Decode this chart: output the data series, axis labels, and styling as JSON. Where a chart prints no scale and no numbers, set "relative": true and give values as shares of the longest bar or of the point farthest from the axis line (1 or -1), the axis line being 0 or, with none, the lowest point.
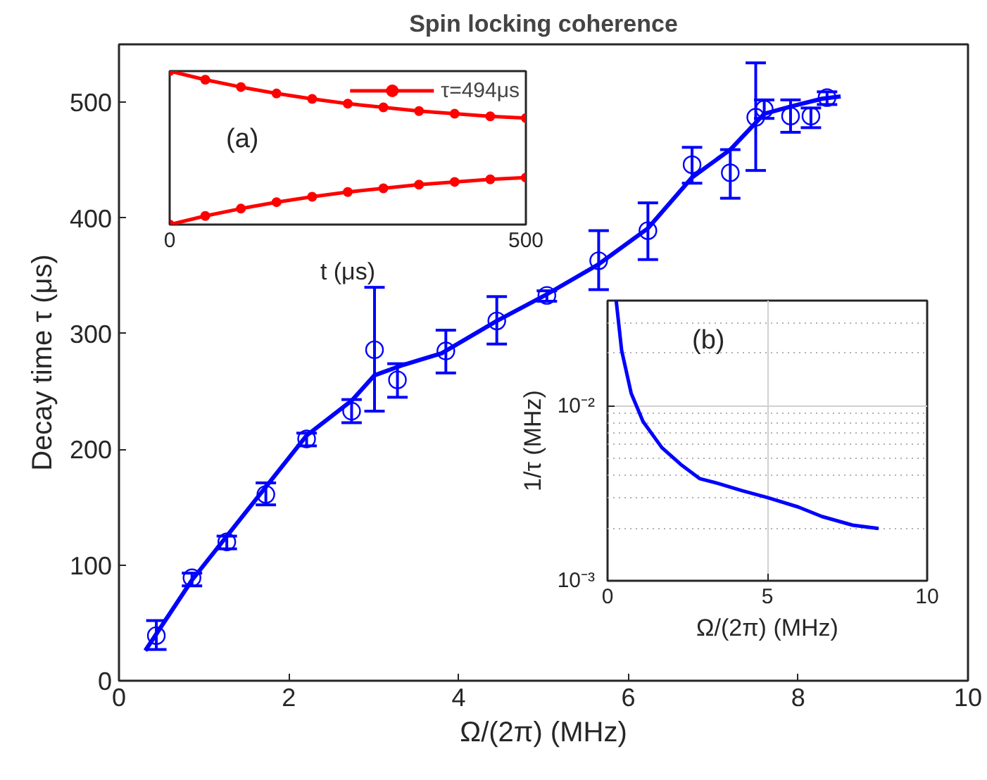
{
  "chart_data": [
    {
      "type": "scatter",
      "title": "Spin locking coherence",
      "xlabel": "Ω/(2π) (MHz)",
      "ylabel": "Decay time τ (μs)",
      "xlim": [
        0,
        10
      ],
      "ylim": [
        0,
        550
      ],
      "xticks": [
        0,
        2,
        4,
        6,
        8,
        10
      ],
      "yticks": [
        0,
        100,
        200,
        300,
        400,
        500
      ],
      "grid": false,
      "series": [
        {
          "marker": "circle",
          "color": "#0000ff",
          "x": [
            0.44,
            0.86,
            1.27,
            1.73,
            2.21,
            2.74,
            3.01,
            3.28,
            3.85,
            4.45,
            5.04,
            5.65,
            6.23,
            6.75,
            7.2,
            7.5,
            7.6,
            7.91,
            8.15,
            8.34
          ],
          "values": [
            39,
            89,
            120,
            161,
            209,
            233,
            286,
            260,
            285,
            311,
            333,
            363,
            389,
            446,
            439,
            487,
            494,
            488,
            488,
            504
          ],
          "errors": [
            [
              27,
              52
            ],
            [
              82,
              93
            ],
            [
              114,
              125
            ],
            [
              152,
              171
            ],
            [
              203,
              214
            ],
            [
              223,
              243
            ],
            [
              233,
              340
            ],
            [
              245,
              274
            ],
            [
              266,
              303
            ],
            [
              291,
              332
            ],
            [
              328,
              337
            ],
            [
              338,
              389
            ],
            [
              364,
              413
            ],
            [
              430,
              461
            ],
            [
              417,
              459
            ],
            [
              441,
              534
            ],
            [
              486,
              502
            ],
            [
              474,
              502
            ],
            [
              478,
              495
            ],
            [
              498,
              509
            ]
          ]
        },
        {
          "type": "line",
          "marker": "none",
          "line_style": "solid",
          "color": "#0000ff",
          "x": [
            0.31,
            0.86,
            2.21,
            2.74,
            3.01,
            3.35,
            3.8,
            4.45,
            5.04,
            5.65,
            6.23,
            6.75,
            7.2,
            7.6,
            7.95,
            8.28,
            8.5
          ],
          "values": [
            26,
            87,
            212,
            242,
            264,
            273,
            283,
            311,
            334,
            360,
            391,
            435,
            459,
            490,
            497,
            503,
            505
          ]
        }
      ]
    },
    {
      "type": "line",
      "relative": true,
      "xlabel": "t (μs)",
      "xlim": [
        0,
        500
      ],
      "xticks": [
        0,
        500
      ],
      "tick_labels": "x",
      "legend": "top right",
      "marker": "circle",
      "line_style": "solid",
      "annotations": [
        "(a)"
      ],
      "series": [
        {
          "name": "τ=494μs",
          "color": "#ff0000",
          "x": [
            0,
            50,
            100,
            150,
            200,
            250,
            300,
            350,
            400,
            450,
            500
          ],
          "values": [
            1,
            0.944,
            0.896,
            0.854,
            0.819,
            0.788,
            0.764,
            0.74,
            0.722,
            0.705,
            0.694
          ]
        },
        {
          "color": "#ff0000",
          "x": [
            0,
            50,
            100,
            150,
            200,
            250,
            300,
            350,
            400,
            450,
            500
          ],
          "values": [
            0,
            0.056,
            0.104,
            0.146,
            0.181,
            0.212,
            0.236,
            0.26,
            0.278,
            0.295,
            0.306
          ]
        }
      ]
    },
    {
      "type": "line",
      "xlabel": "Ω/(2π) (MHz)",
      "ylabel": "1/τ (MHz)",
      "log": "y",
      "xlim": [
        0,
        10
      ],
      "ylim": [
        0.001,
        0.04
      ],
      "xticks": [
        0,
        5,
        10
      ],
      "yticks": [
        {
          "value": 0.001,
          "label": "10⁻³"
        },
        {
          "value": 0.01,
          "label": "10⁻²"
        }
      ],
      "grid": true,
      "annotations": [
        "(b)"
      ],
      "series": [
        {
          "color": "#0000ff",
          "x": [
            0.27,
            0.44,
            0.74,
            1.11,
            1.7,
            2.29,
            2.88,
            3.47,
            4.2,
            5.01,
            5.97,
            6.71,
            7.67,
            8.48
          ],
          "values": [
            0.04,
            0.0208,
            0.0118,
            0.00814,
            0.00577,
            0.00463,
            0.00384,
            0.0036,
            0.00328,
            0.00299,
            0.00264,
            0.00233,
            0.00208,
            0.00199
          ]
        }
      ]
    }
  ]
}
